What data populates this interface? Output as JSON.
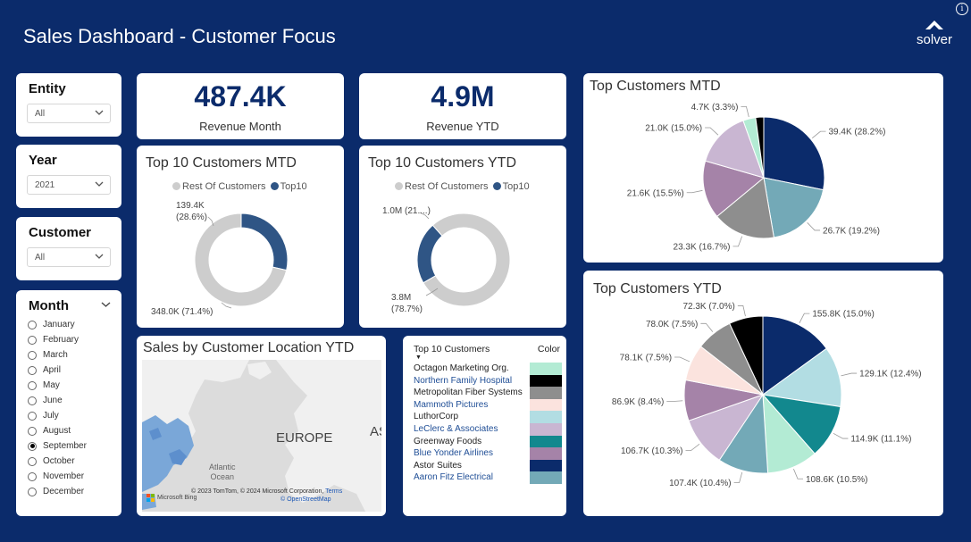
{
  "header": {
    "title": "Sales Dashboard - Customer Focus",
    "logo_text": "solver",
    "info_icon": "i"
  },
  "slicers": {
    "entity": {
      "title": "Entity",
      "value": "All"
    },
    "year": {
      "title": "Year",
      "value": "2021"
    },
    "customer": {
      "title": "Customer",
      "value": "All"
    },
    "month": {
      "title": "Month",
      "selected": "September",
      "options": [
        "January",
        "February",
        "March",
        "April",
        "May",
        "June",
        "July",
        "August",
        "September",
        "October",
        "November",
        "December"
      ]
    }
  },
  "kpis": {
    "revenue_month": {
      "value": "487.4K",
      "label": "Revenue Month"
    },
    "revenue_ytd": {
      "value": "4.9M",
      "label": "Revenue YTD"
    }
  },
  "map": {
    "title": "Sales by Customer Location YTD",
    "labels": {
      "europe": "EUROPE",
      "asia": "AS",
      "atlantic": "Atlantic",
      "ocean": "Ocean"
    },
    "attribution": "© 2023 TomTom, © 2024 Microsoft Corporation,",
    "terms": "Terms",
    "osm": "© OpenStreetMap",
    "bing": "Microsoft Bing"
  },
  "color_table": {
    "col_customer": "Top 10 Customers",
    "col_color": "Color",
    "rows": [
      {
        "name": "Octagon Marketing Org.",
        "color": "#b3ebd4",
        "link": false
      },
      {
        "name": "Northern Family Hospital",
        "color": "#000000",
        "link": true
      },
      {
        "name": "Metropolitan Fiber Systems",
        "color": "#8e8e8e",
        "link": false
      },
      {
        "name": "Mammoth Pictures",
        "color": "#fbe3de",
        "link": true
      },
      {
        "name": "LuthorCorp",
        "color": "#b2dde3",
        "link": false
      },
      {
        "name": "LeClerc & Associates",
        "color": "#c9b6d2",
        "link": true
      },
      {
        "name": "Greenway Foods",
        "color": "#12888e",
        "link": false
      },
      {
        "name": "Blue Yonder Airlines",
        "color": "#a583a8",
        "link": true
      },
      {
        "name": "Astor Suites",
        "color": "#0b2b6b",
        "link": false
      },
      {
        "name": "Aaron Fitz Electrical",
        "color": "#73a9b7",
        "link": true
      }
    ]
  },
  "chart_data": [
    {
      "id": "donut_mtd",
      "type": "pie",
      "title": "Top 10 Customers MTD",
      "hole": true,
      "legend": [
        "Rest Of Customers",
        "Top10"
      ],
      "slices": [
        {
          "name": "Top10",
          "value": 139.4,
          "color": "#2f5585",
          "label_line1": "139.4K",
          "label_line2": "(28.6%)"
        },
        {
          "name": "Rest Of Customers",
          "value": 348.0,
          "color": "#cdcdcd",
          "label_line1": "348.0K (71.4%)",
          "label_line2": ""
        }
      ]
    },
    {
      "id": "donut_ytd",
      "type": "pie",
      "title": "Top 10 Customers YTD",
      "hole": true,
      "legend": [
        "Rest Of Customers",
        "Top10"
      ],
      "slices": [
        {
          "name": "Top10",
          "value": 1.05,
          "color": "#2f5585",
          "label_line1": "1.0M (21....)",
          "label_line2": ""
        },
        {
          "name": "Rest Of Customers",
          "value": 3.8,
          "color": "#cdcdcd",
          "label_line1": "3.8M",
          "label_line2": "(78.7%)"
        }
      ]
    },
    {
      "id": "pie_mtd",
      "type": "pie",
      "title": "Top Customers MTD",
      "slices": [
        {
          "value": 39.4,
          "color": "#0b2b6b",
          "label": "39.4K (28.2%)"
        },
        {
          "value": 26.7,
          "color": "#73a9b7",
          "label": "26.7K (19.2%)"
        },
        {
          "value": 23.3,
          "color": "#8e8e8e",
          "label": "23.3K (16.7%)"
        },
        {
          "value": 21.6,
          "color": "#a583a8",
          "label": "21.6K (15.5%)"
        },
        {
          "value": 21.0,
          "color": "#c9b6d2",
          "label": "21.0K (15.0%)"
        },
        {
          "value": 4.7,
          "color": "#b3ebd4",
          "label": "4.7K (3.3%)"
        },
        {
          "value": 3.0,
          "color": "#000000",
          "label": ""
        }
      ]
    },
    {
      "id": "pie_ytd",
      "type": "pie",
      "title": "Top Customers YTD",
      "slices": [
        {
          "value": 155.8,
          "color": "#0b2b6b",
          "label": "155.8K (15.0%)"
        },
        {
          "value": 129.1,
          "color": "#b2dde3",
          "label": "129.1K (12.4%)"
        },
        {
          "value": 114.9,
          "color": "#12888e",
          "label": "114.9K (11.1%)"
        },
        {
          "value": 108.6,
          "color": "#b3ebd4",
          "label": "108.6K (10.5%)"
        },
        {
          "value": 107.4,
          "color": "#73a9b7",
          "label": "107.4K (10.4%)"
        },
        {
          "value": 106.7,
          "color": "#c9b6d2",
          "label": "106.7K (10.3%)"
        },
        {
          "value": 86.9,
          "color": "#a583a8",
          "label": "86.9K (8.4%)"
        },
        {
          "value": 78.1,
          "color": "#fbe3de",
          "label": "78.1K (7.5%)"
        },
        {
          "value": 78.0,
          "color": "#8e8e8e",
          "label": "78.0K (7.5%)"
        },
        {
          "value": 72.3,
          "color": "#000000",
          "label": "72.3K (7.0%)"
        }
      ]
    }
  ]
}
